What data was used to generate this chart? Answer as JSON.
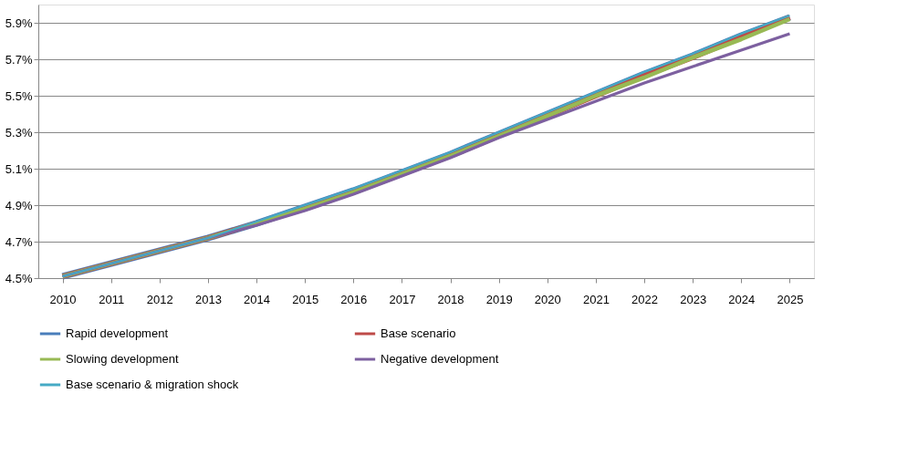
{
  "chart_data": {
    "type": "line",
    "categories": [
      "2010",
      "2011",
      "2012",
      "2013",
      "2014",
      "2015",
      "2016",
      "2017",
      "2018",
      "2019",
      "2020",
      "2021",
      "2022",
      "2023",
      "2024",
      "2025"
    ],
    "series": [
      {
        "name": "Rapid development",
        "color": "#4a7ebb",
        "values": [
          4.51,
          4.58,
          4.65,
          4.72,
          4.8,
          4.89,
          4.98,
          5.08,
          5.18,
          5.29,
          5.4,
          5.51,
          5.62,
          5.72,
          5.83,
          5.93
        ]
      },
      {
        "name": "Base scenario",
        "color": "#be4b48",
        "values": [
          4.51,
          4.58,
          4.65,
          4.72,
          4.8,
          4.88,
          4.97,
          5.07,
          5.17,
          5.28,
          5.39,
          5.5,
          5.61,
          5.71,
          5.82,
          5.93
        ]
      },
      {
        "name": "Slowing development",
        "color": "#98b954",
        "values": [
          4.51,
          4.58,
          4.65,
          4.72,
          4.8,
          4.88,
          4.97,
          5.07,
          5.17,
          5.28,
          5.39,
          5.5,
          5.6,
          5.71,
          5.81,
          5.92
        ]
      },
      {
        "name": "Negative development",
        "color": "#7d60a0",
        "values": [
          4.51,
          4.58,
          4.65,
          4.72,
          4.79,
          4.87,
          4.96,
          5.06,
          5.16,
          5.27,
          5.37,
          5.47,
          5.57,
          5.66,
          5.75,
          5.84
        ]
      },
      {
        "name": "Base scenario & migration shock",
        "color": "#46aac5",
        "values": [
          4.51,
          4.58,
          4.65,
          4.72,
          4.81,
          4.9,
          4.99,
          5.09,
          5.19,
          5.3,
          5.41,
          5.52,
          5.63,
          5.73,
          5.84,
          5.94
        ]
      }
    ],
    "ylim": [
      4.5,
      6.0
    ],
    "yticks": [
      {
        "value": 4.5,
        "label": "4.5%"
      },
      {
        "value": 4.7,
        "label": "4.7%"
      },
      {
        "value": 4.9,
        "label": "4.9%"
      },
      {
        "value": 5.1,
        "label": "5.1%"
      },
      {
        "value": 5.3,
        "label": "5.3%"
      },
      {
        "value": 5.5,
        "label": "5.5%"
      },
      {
        "value": 5.7,
        "label": "5.7%"
      },
      {
        "value": 5.9,
        "label": "5.9%"
      }
    ],
    "grid": "y",
    "legend": "bottom",
    "line_style": "solid",
    "marker": "none"
  }
}
